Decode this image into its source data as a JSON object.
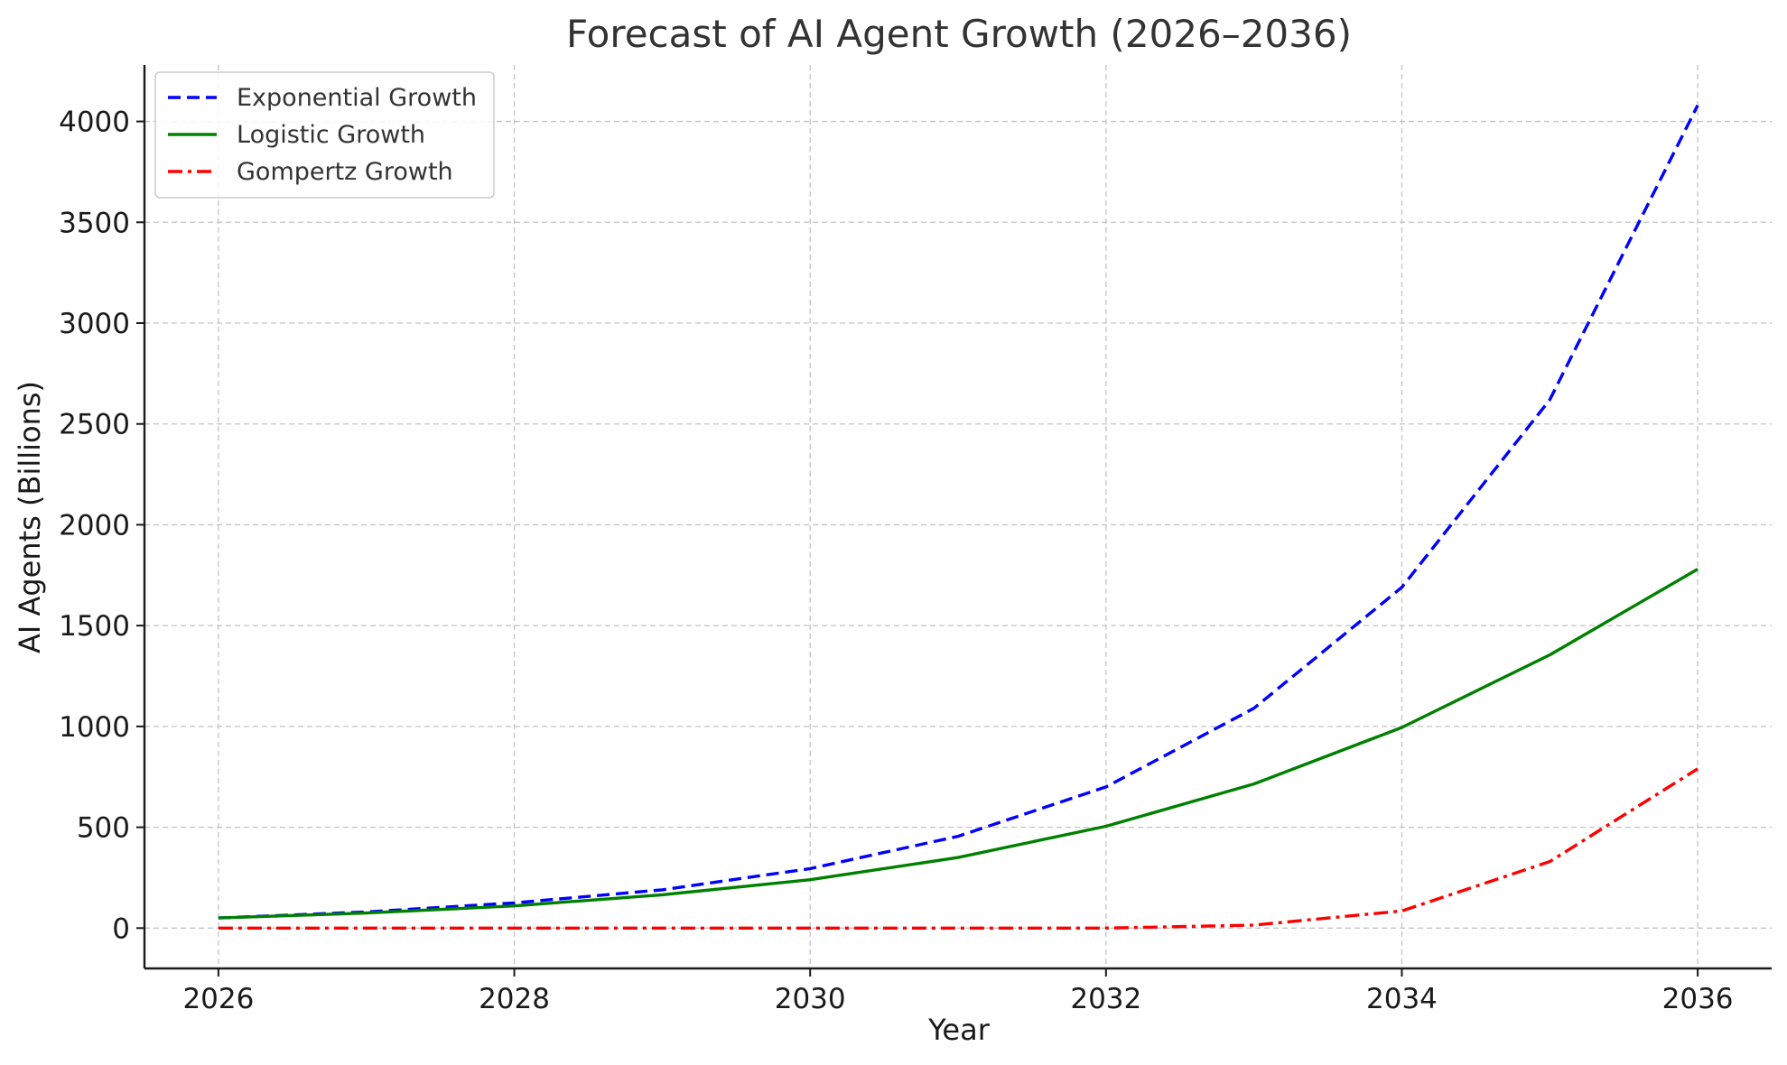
{
  "chart_data": {
    "type": "line",
    "title": "Forecast of AI Agent Growth (2026–2036)",
    "xlabel": "Year",
    "ylabel": "AI Agents (Billions)",
    "xlim": [
      2025.5,
      2036.5
    ],
    "ylim": [
      -200,
      4280
    ],
    "x": [
      2026,
      2027,
      2028,
      2029,
      2030,
      2031,
      2032,
      2033,
      2034,
      2035,
      2036
    ],
    "x_ticks": [
      2026,
      2028,
      2030,
      2032,
      2034,
      2036
    ],
    "y_ticks": [
      0,
      500,
      1000,
      1500,
      2000,
      2500,
      3000,
      3500,
      4000
    ],
    "grid": true,
    "legend_position": "top-left",
    "series": [
      {
        "name": "Exponential Growth",
        "color": "#0000ff",
        "style": "dashed",
        "values": [
          50,
          80,
          125,
          190,
          295,
          455,
          700,
          1090,
          1690,
          2620,
          4080
        ]
      },
      {
        "name": "Logistic Growth",
        "color": "#008000",
        "style": "solid",
        "values": [
          50,
          75,
          110,
          165,
          240,
          350,
          505,
          715,
          995,
          1355,
          1780
        ]
      },
      {
        "name": "Gompertz Growth",
        "color": "#ff0000",
        "style": "dashdot",
        "values": [
          0,
          0,
          0,
          0,
          0,
          0,
          0,
          15,
          85,
          330,
          790
        ]
      }
    ]
  }
}
